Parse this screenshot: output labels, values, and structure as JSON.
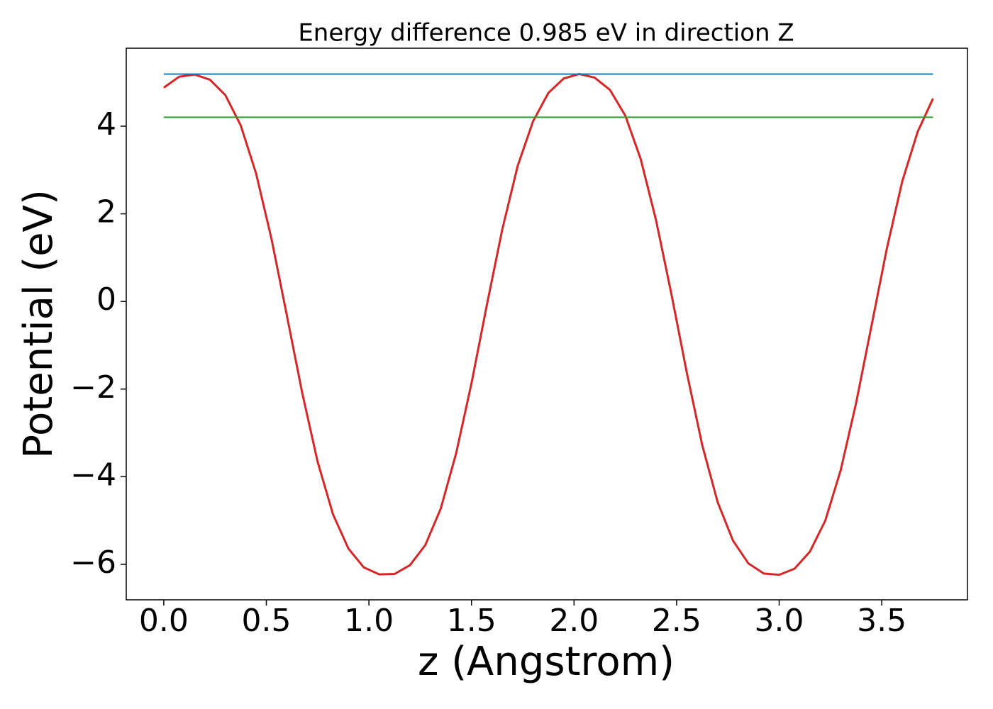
{
  "chart_data": {
    "type": "line",
    "title": "Energy difference 0.985 eV in direction Z",
    "xlabel": "z (Angstrom)",
    "ylabel": "Potential (eV)",
    "xlim": [
      -0.183,
      3.918
    ],
    "ylim": [
      -6.81,
      5.78
    ],
    "xticks": [
      {
        "value": 0,
        "label": "0.0"
      },
      {
        "value": 0.5,
        "label": "0.5"
      },
      {
        "value": 1,
        "label": "1.0"
      },
      {
        "value": 1.5,
        "label": "1.5"
      },
      {
        "value": 2,
        "label": "2.0"
      },
      {
        "value": 2.5,
        "label": "2.5"
      },
      {
        "value": 3,
        "label": "3.0"
      },
      {
        "value": 3.5,
        "label": "3.5"
      }
    ],
    "yticks": [
      {
        "value": -6,
        "label": "−6"
      },
      {
        "value": -4,
        "label": "−4"
      },
      {
        "value": -2,
        "label": "−2"
      },
      0,
      2,
      4
    ],
    "grid": false,
    "series": [
      {
        "color": "#d62728",
        "x": [
          0,
          0.075,
          0.15,
          0.225,
          0.3,
          0.375,
          0.45,
          0.525,
          0.6,
          0.675,
          0.75,
          0.825,
          0.9,
          0.975,
          1.05,
          1.125,
          1.2,
          1.275,
          1.35,
          1.425,
          1.5,
          1.575,
          1.65,
          1.725,
          1.8,
          1.875,
          1.95,
          2.025,
          2.1,
          2.175,
          2.25,
          2.325,
          2.4,
          2.475,
          2.55,
          2.625,
          2.7,
          2.775,
          2.85,
          2.925,
          3.0,
          3.075,
          3.15,
          3.225,
          3.3,
          3.375,
          3.45,
          3.525,
          3.6,
          3.675,
          3.75
        ],
        "values": [
          4.88,
          5.13,
          5.18,
          5.06,
          4.71,
          4.02,
          2.92,
          1.43,
          -0.32,
          -2.09,
          -3.66,
          -4.86,
          -5.64,
          -6.07,
          -6.23,
          -6.22,
          -6.02,
          -5.56,
          -4.73,
          -3.47,
          -1.87,
          -0.08,
          1.64,
          3.09,
          4.11,
          4.76,
          5.09,
          5.19,
          5.11,
          4.83,
          4.24,
          3.25,
          1.85,
          0.16,
          -1.63,
          -3.28,
          -4.58,
          -5.46,
          -5.98,
          -6.21,
          -6.24,
          -6.1,
          -5.71,
          -5.0,
          -3.85,
          -2.32,
          -0.56,
          1.21,
          2.74,
          3.87,
          4.63
        ]
      },
      {
        "color": "#1f77b4",
        "x": [
          0,
          3.75
        ],
        "values": [
          5.19,
          5.19
        ]
      },
      {
        "color": "#2ca02c",
        "x": [
          0,
          3.75
        ],
        "values": [
          4.205,
          4.205
        ]
      }
    ]
  }
}
